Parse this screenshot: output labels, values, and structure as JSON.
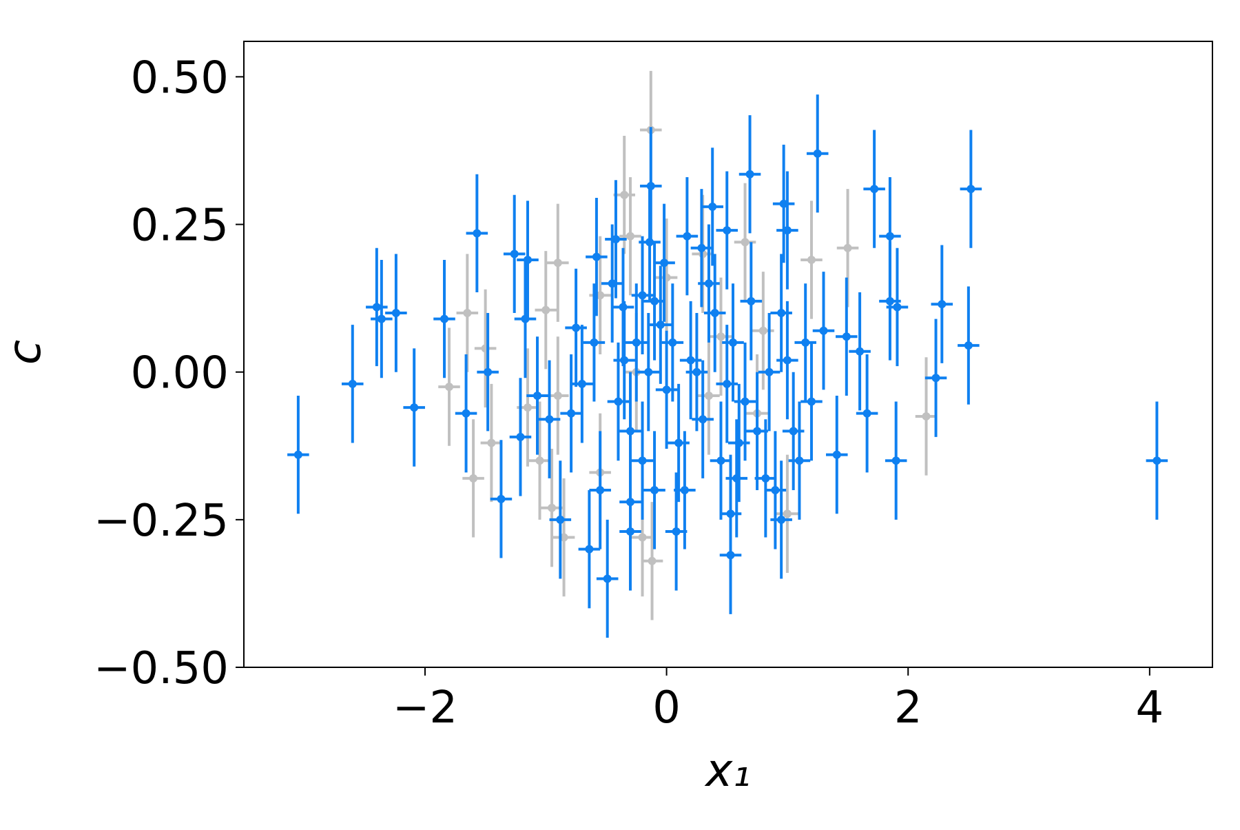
{
  "chart_data": {
    "type": "scatter",
    "xlabel": "x₁",
    "ylabel": "c",
    "xlim": [
      -3.5,
      4.52
    ],
    "ylim": [
      -0.5,
      0.56
    ],
    "xticks": [
      {
        "value": -2,
        "label": "−2"
      },
      0,
      2,
      4
    ],
    "yticks": [
      {
        "value": -0.5,
        "label": "−0.50"
      },
      {
        "value": -0.25,
        "label": "−0.25"
      },
      {
        "value": 0,
        "label": "0.00"
      },
      {
        "value": 0.25,
        "label": "0.25"
      },
      {
        "value": 0.5,
        "label": "0.50"
      }
    ],
    "series": [
      {
        "color": "#c0c0c0",
        "xerr": 0.09,
        "yerr": 0.1,
        "x": [
          -0.13,
          -0.3,
          -0.35,
          -0.9,
          -1.0,
          -1.65,
          -1.5,
          -1.8,
          -1.6,
          -1.45,
          -1.15,
          -1.05,
          -0.95,
          -0.9,
          -0.85,
          -0.55,
          -0.12,
          -0.2,
          0.0,
          0.45,
          0.65,
          0.8,
          1.0,
          1.2,
          1.5,
          2.15,
          0.75,
          -0.55,
          0.3,
          -0.25,
          0.35
        ],
        "values": [
          0.41,
          0.23,
          0.3,
          0.185,
          0.105,
          0.1,
          0.04,
          -0.025,
          -0.18,
          -0.12,
          -0.06,
          -0.15,
          -0.23,
          -0.04,
          -0.28,
          -0.17,
          -0.32,
          -0.28,
          0.16,
          0.06,
          0.22,
          0.07,
          -0.24,
          0.19,
          0.21,
          -0.075,
          -0.07,
          0.13,
          0.2,
          0.0,
          -0.04
        ]
      },
      {
        "color": "#0f80f0",
        "xerr": 0.09,
        "yerr": 0.1,
        "x": [
          -3.05,
          -2.6,
          -2.4,
          -2.36,
          -2.24,
          -2.09,
          -1.84,
          -1.66,
          -1.57,
          -1.48,
          -1.37,
          -1.26,
          -1.21,
          -1.15,
          -1.17,
          -1.07,
          -0.97,
          -0.88,
          -0.79,
          -0.75,
          -0.64,
          -0.58,
          -0.49,
          -0.42,
          -0.36,
          -0.3,
          -0.13,
          -0.14,
          -0.02,
          0.08,
          0.17,
          0.29,
          0.38,
          0.5,
          0.53,
          0.58,
          0.53,
          0.69,
          0.82,
          0.95,
          0.97,
          1.0,
          1.25,
          1.3,
          1.41,
          1.49,
          1.6,
          1.66,
          1.72,
          1.85,
          1.85,
          1.9,
          1.91,
          2.23,
          2.28,
          2.5,
          2.52,
          4.06,
          -0.4,
          -0.35,
          -0.3,
          -0.25,
          -0.2,
          -0.15,
          -0.1,
          -0.05,
          0.0,
          0.05,
          0.1,
          0.2,
          0.3,
          0.4,
          0.45,
          0.55,
          0.65,
          0.7,
          0.75,
          0.85,
          0.9,
          1.0,
          1.05,
          1.1,
          1.2,
          -0.6,
          -0.7,
          -0.55,
          -0.45,
          -0.2,
          0.15,
          0.35,
          0.6,
          0.95,
          1.15,
          -0.3,
          -0.1,
          0.5,
          0.25
        ],
        "values": [
          -0.14,
          -0.02,
          0.11,
          0.09,
          0.1,
          -0.06,
          0.09,
          -0.07,
          0.235,
          0.0,
          -0.215,
          0.2,
          -0.11,
          0.19,
          0.09,
          -0.04,
          -0.08,
          -0.25,
          -0.07,
          0.075,
          -0.3,
          0.195,
          -0.35,
          0.225,
          0.11,
          -0.27,
          0.315,
          0.22,
          0.185,
          -0.27,
          0.23,
          0.21,
          0.28,
          0.24,
          -0.31,
          -0.18,
          -0.24,
          0.335,
          -0.18,
          -0.25,
          0.285,
          0.24,
          0.37,
          0.07,
          -0.14,
          0.06,
          0.035,
          -0.07,
          0.31,
          0.23,
          0.12,
          -0.15,
          0.11,
          -0.01,
          0.115,
          0.045,
          0.31,
          -0.15,
          -0.05,
          0.02,
          -0.1,
          0.05,
          -0.15,
          0.0,
          -0.2,
          0.08,
          -0.03,
          0.05,
          -0.12,
          0.02,
          -0.08,
          0.1,
          -0.15,
          0.05,
          -0.05,
          0.12,
          -0.1,
          0.0,
          -0.2,
          0.02,
          -0.1,
          -0.15,
          -0.05,
          0.05,
          -0.02,
          -0.2,
          0.15,
          0.13,
          -0.2,
          0.15,
          -0.12,
          0.1,
          0.05,
          -0.22,
          0.12,
          -0.02,
          0.0
        ]
      }
    ]
  }
}
